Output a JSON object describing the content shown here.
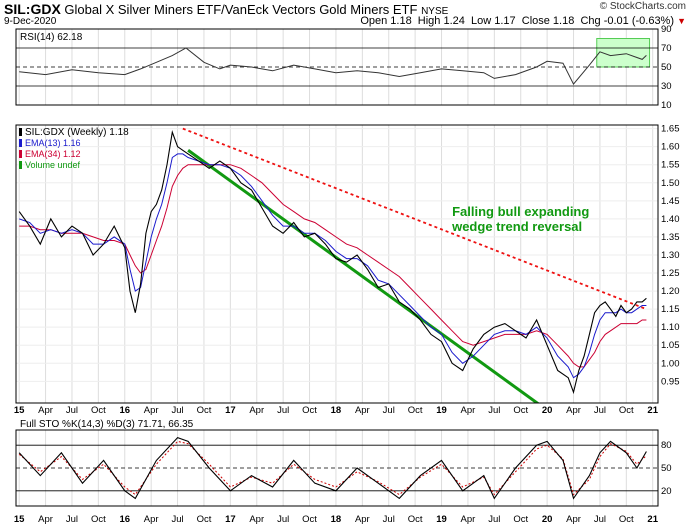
{
  "header": {
    "symbol": "SIL:GDX",
    "description": "Global X Silver Miners ETF/VanEck Vectors Gold Miners ETF",
    "exchange": "NYSE",
    "date": "9-Dec-2020",
    "logo": "© StockCharts.com",
    "ohlc_line": "Open 1.18  High 1.24  Low 1.17  Close 1.18  Chg -0.01 (-0.63%)",
    "down_icon": "triangle-down-icon"
  },
  "colors": {
    "price": "#000000",
    "ema13": "#1a1acc",
    "ema34": "#cc0033",
    "rsi": "#333333",
    "trend_support": "#119911",
    "trend_resistance": "#ee1111",
    "annotation": "#119911",
    "rsi_highlight": "#ccffcc"
  },
  "chart_data": [
    {
      "type": "line",
      "panel": "RSI",
      "legend": "RSI(14) 62.18",
      "ylim": [
        10,
        90
      ],
      "yticks": [
        10,
        30,
        50,
        70,
        90
      ],
      "reference_lines": [
        30,
        50,
        70
      ],
      "x": [
        2015.0,
        2015.25,
        2015.5,
        2015.75,
        2016.0,
        2016.15,
        2016.3,
        2016.45,
        2016.58,
        2016.75,
        2016.9,
        2017.0,
        2017.2,
        2017.4,
        2017.6,
        2017.8,
        2018.0,
        2018.2,
        2018.4,
        2018.6,
        2018.8,
        2019.0,
        2019.2,
        2019.4,
        2019.5,
        2019.7,
        2019.9,
        2020.0,
        2020.15,
        2020.25,
        2020.4,
        2020.5,
        2020.6,
        2020.75,
        2020.9,
        2020.94
      ],
      "values": [
        45,
        42,
        47,
        44,
        42,
        48,
        55,
        62,
        70,
        55,
        48,
        52,
        50,
        46,
        52,
        48,
        44,
        46,
        44,
        40,
        44,
        48,
        46,
        44,
        38,
        42,
        50,
        56,
        54,
        32,
        52,
        66,
        62,
        64,
        58,
        62.18
      ]
    },
    {
      "type": "line",
      "panel": "Price",
      "legend": [
        "SIL:GDX (Weekly) 1.18",
        "EMA(13) 1.16",
        "EMA(34) 1.12",
        "Volume undef"
      ],
      "ylim": [
        0.89,
        1.66
      ],
      "yticks": [
        0.95,
        1.0,
        1.05,
        1.1,
        1.15,
        1.2,
        1.25,
        1.3,
        1.35,
        1.4,
        1.45,
        1.5,
        1.55,
        1.6,
        1.65
      ],
      "x": [
        2015.0,
        2015.1,
        2015.2,
        2015.3,
        2015.4,
        2015.5,
        2015.6,
        2015.7,
        2015.8,
        2015.9,
        2016.0,
        2016.05,
        2016.1,
        2016.15,
        2016.2,
        2016.25,
        2016.3,
        2016.35,
        2016.4,
        2016.45,
        2016.5,
        2016.55,
        2016.6,
        2016.7,
        2016.8,
        2016.9,
        2017.0,
        2017.1,
        2017.2,
        2017.3,
        2017.4,
        2017.5,
        2017.6,
        2017.7,
        2017.8,
        2017.9,
        2018.0,
        2018.1,
        2018.2,
        2018.3,
        2018.4,
        2018.5,
        2018.6,
        2018.7,
        2018.8,
        2018.9,
        2019.0,
        2019.1,
        2019.2,
        2019.3,
        2019.4,
        2019.5,
        2019.6,
        2019.7,
        2019.8,
        2019.9,
        2020.0,
        2020.1,
        2020.2,
        2020.25,
        2020.3,
        2020.35,
        2020.4,
        2020.45,
        2020.5,
        2020.55,
        2020.6,
        2020.65,
        2020.7,
        2020.75,
        2020.8,
        2020.85,
        2020.9,
        2020.94
      ],
      "series": [
        {
          "name": "SIL:GDX",
          "values": [
            1.42,
            1.38,
            1.33,
            1.4,
            1.35,
            1.38,
            1.36,
            1.3,
            1.33,
            1.38,
            1.32,
            1.2,
            1.14,
            1.22,
            1.36,
            1.42,
            1.44,
            1.48,
            1.55,
            1.64,
            1.6,
            1.59,
            1.58,
            1.56,
            1.54,
            1.56,
            1.54,
            1.5,
            1.48,
            1.43,
            1.38,
            1.36,
            1.39,
            1.35,
            1.36,
            1.33,
            1.29,
            1.28,
            1.3,
            1.26,
            1.21,
            1.22,
            1.17,
            1.15,
            1.12,
            1.08,
            1.06,
            1.0,
            0.98,
            1.04,
            1.08,
            1.1,
            1.11,
            1.09,
            1.07,
            1.12,
            1.05,
            0.98,
            0.96,
            0.92,
            0.98,
            1.02,
            1.08,
            1.14,
            1.16,
            1.17,
            1.15,
            1.13,
            1.16,
            1.14,
            1.15,
            1.17,
            1.17,
            1.18
          ]
        },
        {
          "name": "EMA(13)",
          "values": [
            1.4,
            1.39,
            1.36,
            1.37,
            1.36,
            1.37,
            1.36,
            1.33,
            1.33,
            1.35,
            1.33,
            1.26,
            1.2,
            1.21,
            1.28,
            1.35,
            1.4,
            1.44,
            1.5,
            1.57,
            1.58,
            1.58,
            1.57,
            1.56,
            1.55,
            1.55,
            1.54,
            1.52,
            1.49,
            1.45,
            1.41,
            1.38,
            1.38,
            1.36,
            1.36,
            1.34,
            1.31,
            1.29,
            1.29,
            1.27,
            1.23,
            1.22,
            1.19,
            1.16,
            1.13,
            1.1,
            1.08,
            1.03,
            1.0,
            1.02,
            1.05,
            1.08,
            1.09,
            1.09,
            1.08,
            1.1,
            1.07,
            1.02,
            0.99,
            0.96,
            0.97,
            0.99,
            1.03,
            1.08,
            1.12,
            1.14,
            1.14,
            1.14,
            1.15,
            1.14,
            1.14,
            1.15,
            1.16,
            1.16
          ]
        },
        {
          "name": "EMA(34)",
          "values": [
            1.38,
            1.38,
            1.37,
            1.37,
            1.36,
            1.36,
            1.36,
            1.35,
            1.34,
            1.34,
            1.33,
            1.3,
            1.27,
            1.25,
            1.26,
            1.3,
            1.34,
            1.38,
            1.43,
            1.49,
            1.52,
            1.54,
            1.55,
            1.55,
            1.55,
            1.55,
            1.55,
            1.54,
            1.52,
            1.5,
            1.47,
            1.44,
            1.42,
            1.4,
            1.39,
            1.37,
            1.35,
            1.33,
            1.32,
            1.3,
            1.28,
            1.26,
            1.24,
            1.21,
            1.18,
            1.15,
            1.12,
            1.09,
            1.06,
            1.05,
            1.06,
            1.07,
            1.08,
            1.08,
            1.08,
            1.09,
            1.08,
            1.05,
            1.02,
            1.0,
            0.99,
            0.99,
            1.01,
            1.03,
            1.06,
            1.08,
            1.09,
            1.1,
            1.11,
            1.11,
            1.11,
            1.11,
            1.12,
            1.12
          ]
        }
      ],
      "trendlines": [
        {
          "name": "support",
          "style": "solid",
          "from": [
            2016.6,
            1.59
          ],
          "to": [
            2020.0,
            0.87
          ]
        },
        {
          "name": "resistance",
          "style": "dashed",
          "from": [
            2016.55,
            1.65
          ],
          "to": [
            2020.94,
            1.15
          ]
        }
      ],
      "annotation": "Falling bull expanding\nwedge trend reversal"
    },
    {
      "type": "line",
      "panel": "Stochastic",
      "legend": "Full STO %K(14,3) %D(3) 71.71, 66.35",
      "ylim": [
        0,
        100
      ],
      "yticks": [
        20,
        50,
        80
      ],
      "reference_lines": [
        20,
        50,
        80
      ],
      "x": [
        2015.0,
        2015.2,
        2015.4,
        2015.6,
        2015.8,
        2016.0,
        2016.1,
        2016.3,
        2016.5,
        2016.6,
        2016.8,
        2017.0,
        2017.2,
        2017.4,
        2017.6,
        2017.8,
        2018.0,
        2018.2,
        2018.4,
        2018.6,
        2018.8,
        2019.0,
        2019.2,
        2019.4,
        2019.5,
        2019.7,
        2019.9,
        2020.0,
        2020.15,
        2020.25,
        2020.4,
        2020.5,
        2020.6,
        2020.75,
        2020.85,
        2020.94
      ],
      "series": [
        {
          "name": "%K",
          "values": [
            70,
            40,
            70,
            30,
            60,
            20,
            10,
            60,
            90,
            85,
            50,
            20,
            40,
            25,
            60,
            30,
            20,
            50,
            30,
            10,
            40,
            60,
            20,
            40,
            10,
            50,
            80,
            85,
            60,
            10,
            40,
            70,
            85,
            70,
            50,
            71.71
          ]
        },
        {
          "name": "%D",
          "values": [
            68,
            45,
            65,
            35,
            55,
            25,
            15,
            55,
            85,
            82,
            55,
            25,
            38,
            30,
            55,
            35,
            25,
            45,
            32,
            15,
            38,
            55,
            25,
            38,
            15,
            45,
            75,
            80,
            62,
            15,
            35,
            65,
            82,
            72,
            55,
            66.35
          ]
        }
      ]
    }
  ],
  "xaxis": {
    "ticks": [
      {
        "label": "15",
        "x": 2015.0,
        "bold": true
      },
      {
        "label": "Apr",
        "x": 2015.25
      },
      {
        "label": "Jul",
        "x": 2015.5
      },
      {
        "label": "Oct",
        "x": 2015.75
      },
      {
        "label": "16",
        "x": 2016.0,
        "bold": true
      },
      {
        "label": "Apr",
        "x": 2016.25
      },
      {
        "label": "Jul",
        "x": 2016.5
      },
      {
        "label": "Oct",
        "x": 2016.75
      },
      {
        "label": "17",
        "x": 2017.0,
        "bold": true
      },
      {
        "label": "Apr",
        "x": 2017.25
      },
      {
        "label": "Jul",
        "x": 2017.5
      },
      {
        "label": "Oct",
        "x": 2017.75
      },
      {
        "label": "18",
        "x": 2018.0,
        "bold": true
      },
      {
        "label": "Apr",
        "x": 2018.25
      },
      {
        "label": "Jul",
        "x": 2018.5
      },
      {
        "label": "Oct",
        "x": 2018.75
      },
      {
        "label": "19",
        "x": 2019.0,
        "bold": true
      },
      {
        "label": "Apr",
        "x": 2019.25
      },
      {
        "label": "Jul",
        "x": 2019.5
      },
      {
        "label": "Oct",
        "x": 2019.75
      },
      {
        "label": "20",
        "x": 2020.0,
        "bold": true
      },
      {
        "label": "Apr",
        "x": 2020.25
      },
      {
        "label": "Jul",
        "x": 2020.5
      },
      {
        "label": "Oct",
        "x": 2020.75
      },
      {
        "label": "21",
        "x": 2021.0,
        "bold": true
      }
    ],
    "range": [
      2014.97,
      2021.05
    ]
  }
}
